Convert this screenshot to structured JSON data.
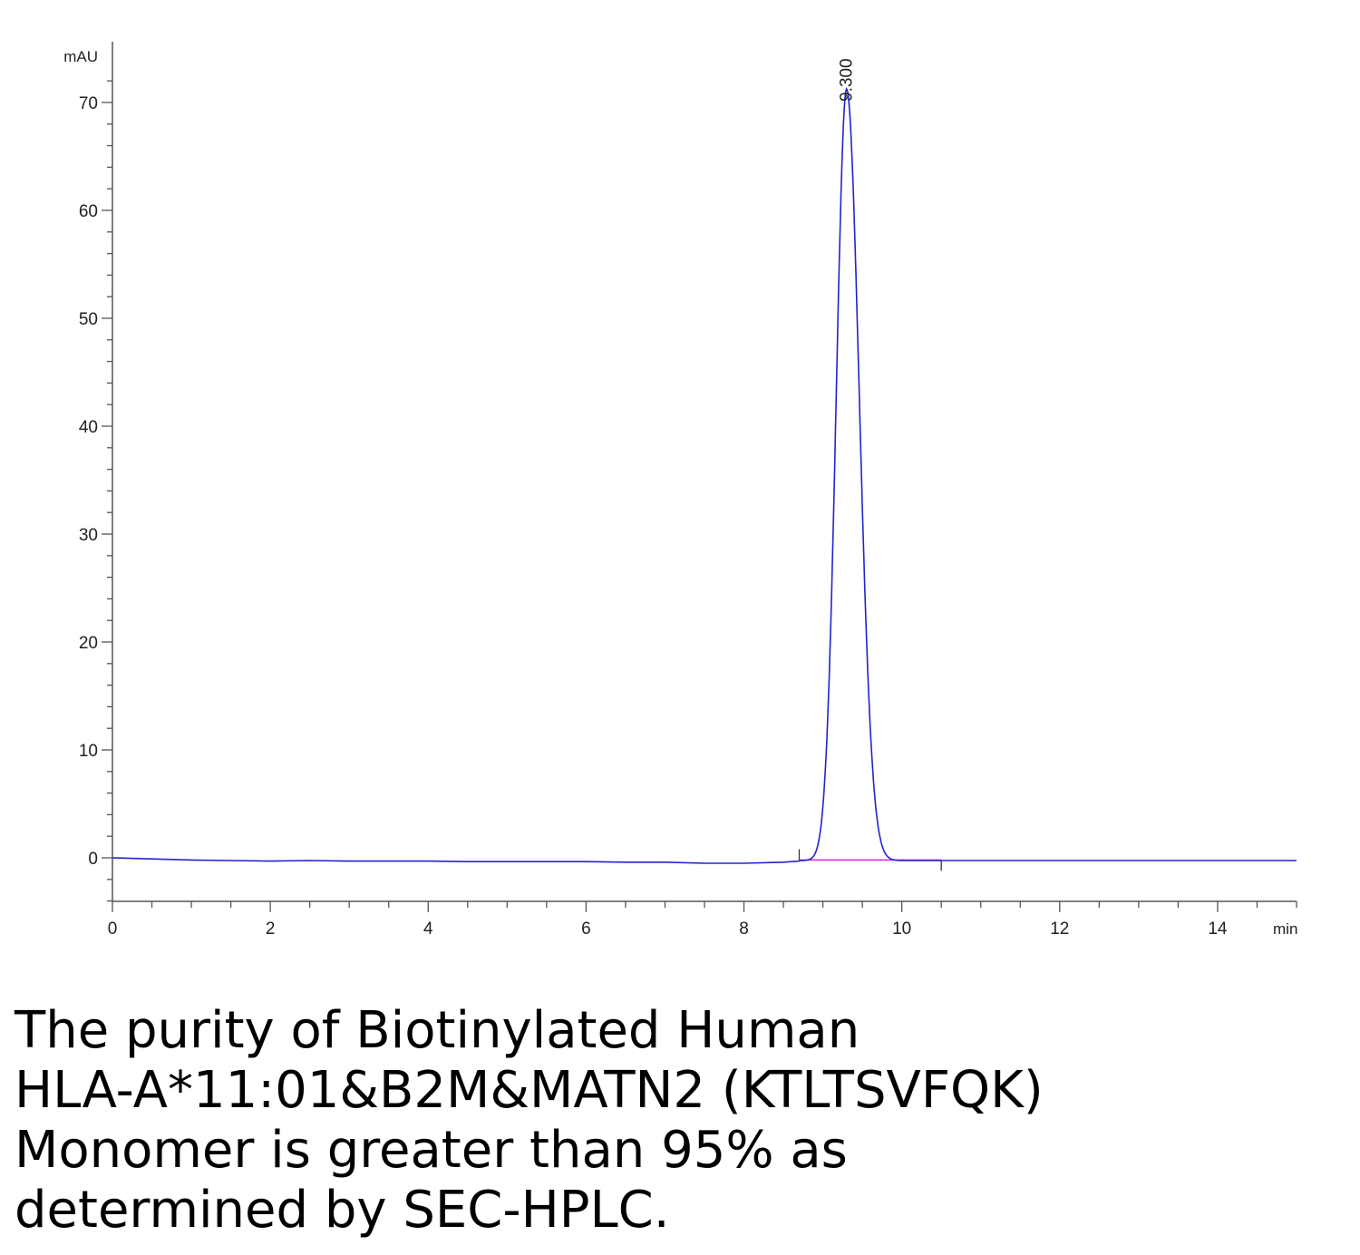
{
  "chart_data": {
    "type": "line",
    "title": "",
    "xlabel": "min",
    "ylabel": "mAU",
    "xlim": [
      0,
      15
    ],
    "ylim": [
      -4,
      72
    ],
    "x_ticks": [
      0,
      2,
      4,
      6,
      8,
      10,
      12,
      14
    ],
    "y_ticks": [
      0,
      10,
      20,
      30,
      40,
      50,
      60,
      70
    ],
    "grid": false,
    "series": [
      {
        "color": "#2323cc",
        "peak": {
          "retention_time": 9.3,
          "height": 71.5,
          "sigma_left": 0.13,
          "sigma_right": 0.16
        },
        "x": [
          0,
          0.5,
          1,
          1.5,
          2,
          2.5,
          3,
          3.5,
          4,
          4.5,
          5,
          5.5,
          6,
          6.5,
          7,
          7.5,
          8,
          8.5,
          8.7
        ],
        "y": [
          0.0,
          -0.1,
          -0.2,
          -0.25,
          -0.3,
          -0.25,
          -0.3,
          -0.3,
          -0.3,
          -0.35,
          -0.35,
          -0.35,
          -0.35,
          -0.4,
          -0.4,
          -0.5,
          -0.5,
          -0.4,
          -0.3
        ]
      }
    ],
    "baseline_segment": {
      "x": [
        8.7,
        10.5
      ],
      "y": [
        -0.2,
        -0.2
      ],
      "color": "#e020e0"
    },
    "integration_marks": [
      8.7,
      10.5
    ],
    "annotations": [
      {
        "x": 9.3,
        "text": "9.300"
      }
    ]
  },
  "caption": {
    "lines": [
      "The purity of Biotinylated Human",
      "HLA-A*11:01&B2M&MATN2 (KTLTSVFQK)",
      "Monomer is greater than 95% as",
      "determined by SEC-HPLC."
    ]
  }
}
